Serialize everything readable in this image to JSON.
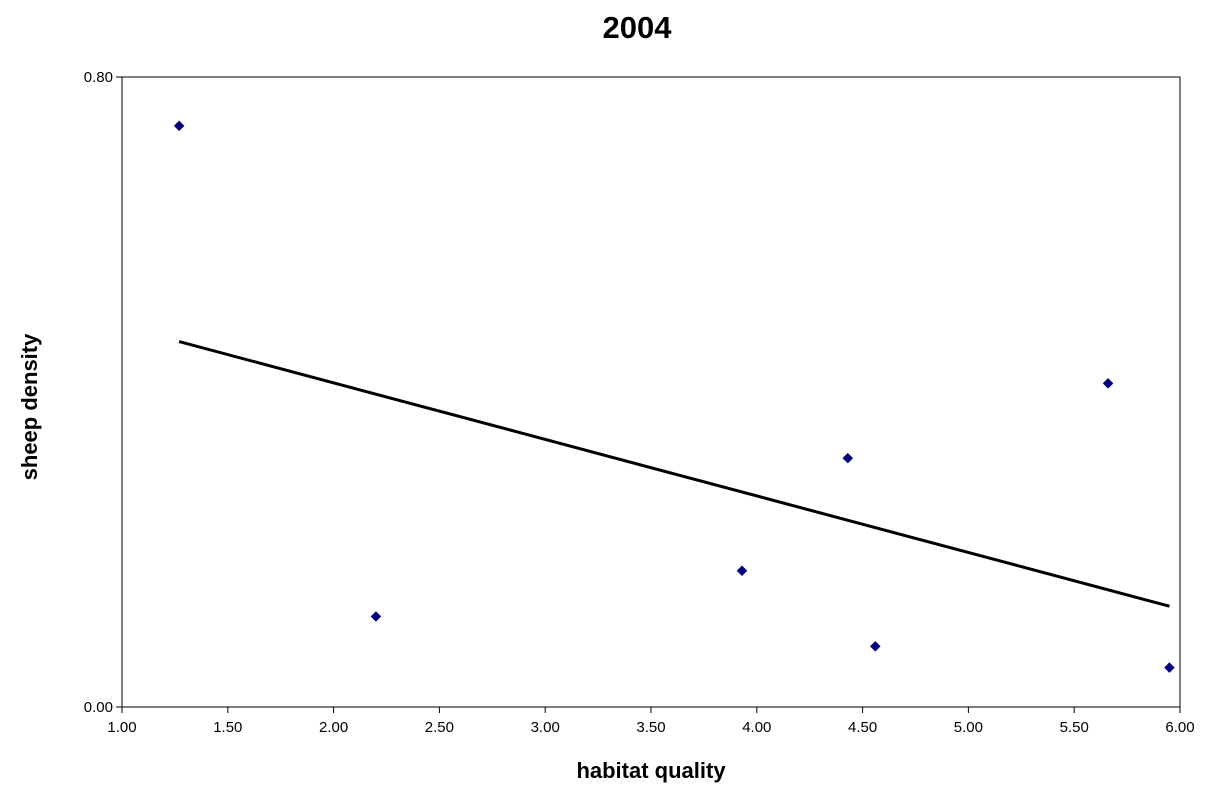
{
  "chart_data": {
    "type": "scatter",
    "title": "2004",
    "xlabel": "habitat quality",
    "ylabel": "sheep density",
    "xlim": [
      1.0,
      6.0
    ],
    "ylim": [
      0.0,
      0.8
    ],
    "x_ticks": [
      "1.00",
      "1.50",
      "2.00",
      "2.50",
      "3.00",
      "3.50",
      "4.00",
      "4.50",
      "5.00",
      "5.50",
      "6.00"
    ],
    "y_ticks": [
      "0.00",
      "0.80"
    ],
    "grid": false,
    "legend": "none",
    "series": [
      {
        "marker": "diamond",
        "color": "#000080",
        "points": [
          {
            "x": 1.27,
            "y": 0.738
          },
          {
            "x": 2.2,
            "y": 0.115
          },
          {
            "x": 3.93,
            "y": 0.173
          },
          {
            "x": 4.43,
            "y": 0.316
          },
          {
            "x": 4.56,
            "y": 0.077
          },
          {
            "x": 5.66,
            "y": 0.411
          },
          {
            "x": 5.95,
            "y": 0.05
          }
        ]
      }
    ],
    "trendline": {
      "type": "linear",
      "color": "#000000",
      "start": {
        "x": 1.27,
        "y": 0.464
      },
      "end": {
        "x": 5.95,
        "y": 0.128
      }
    }
  }
}
